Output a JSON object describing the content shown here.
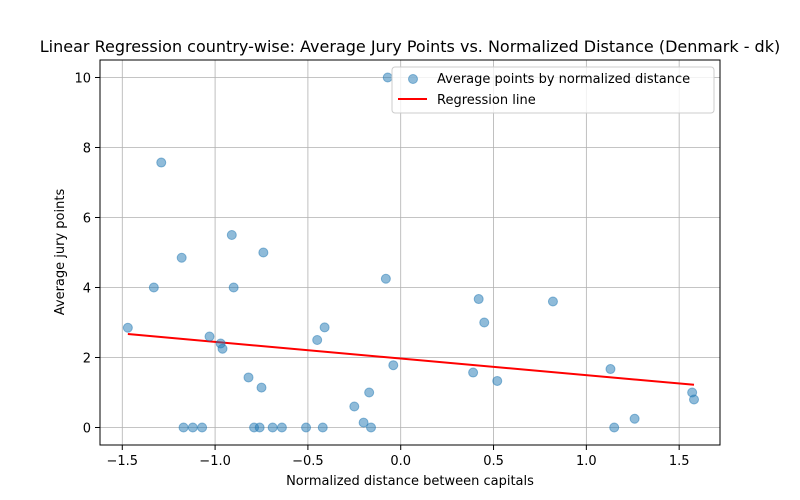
{
  "chart_data": {
    "type": "scatter",
    "title": "Linear Regression country-wise: Average Jury Points vs. Normalized Distance (Denmark - dk)",
    "xlabel": "Normalized distance between capitals",
    "ylabel": "Average jury points",
    "xlim": [
      -1.62,
      1.72
    ],
    "ylim": [
      -0.5,
      10.5
    ],
    "xticks": [
      -1.5,
      -1.0,
      -0.5,
      0.0,
      0.5,
      1.0,
      1.5
    ],
    "xtick_labels": [
      "−1.5",
      "−1.0",
      "−0.5",
      "0.0",
      "0.5",
      "1.0",
      "1.5"
    ],
    "yticks": [
      0,
      2,
      4,
      6,
      8,
      10
    ],
    "ytick_labels": [
      "0",
      "2",
      "4",
      "6",
      "8",
      "10"
    ],
    "grid": true,
    "legend_position": "top-right",
    "series": [
      {
        "name": "Average points by normalized distance",
        "kind": "scatter",
        "color": "#1f77b4",
        "points": [
          [
            -1.47,
            2.85
          ],
          [
            -1.29,
            7.57
          ],
          [
            -1.33,
            4.0
          ],
          [
            -1.18,
            4.85
          ],
          [
            -1.17,
            0.0
          ],
          [
            -1.12,
            0.0
          ],
          [
            -1.07,
            0.0
          ],
          [
            -1.03,
            2.6
          ],
          [
            -0.97,
            2.4
          ],
          [
            -0.96,
            2.25
          ],
          [
            -0.91,
            5.5
          ],
          [
            -0.9,
            4.0
          ],
          [
            -0.82,
            1.43
          ],
          [
            -0.79,
            0.0
          ],
          [
            -0.76,
            0.0
          ],
          [
            -0.75,
            1.14
          ],
          [
            -0.74,
            5.0
          ],
          [
            -0.69,
            0.0
          ],
          [
            -0.64,
            0.0
          ],
          [
            -0.51,
            0.0
          ],
          [
            -0.45,
            2.5
          ],
          [
            -0.42,
            0.0
          ],
          [
            -0.41,
            2.86
          ],
          [
            -0.25,
            0.6
          ],
          [
            -0.2,
            0.14
          ],
          [
            -0.17,
            1.0
          ],
          [
            -0.16,
            0.0
          ],
          [
            -0.08,
            4.25
          ],
          [
            -0.07,
            10.0
          ],
          [
            -0.04,
            1.78
          ],
          [
            0.39,
            1.57
          ],
          [
            0.42,
            3.67
          ],
          [
            0.45,
            3.0
          ],
          [
            0.52,
            1.33
          ],
          [
            0.82,
            3.6
          ],
          [
            1.13,
            1.67
          ],
          [
            1.15,
            0.0
          ],
          [
            1.26,
            0.25
          ],
          [
            1.57,
            1.0
          ],
          [
            1.58,
            0.8
          ]
        ]
      },
      {
        "name": "Regression line",
        "kind": "line",
        "color": "#ff0000",
        "points": [
          [
            -1.47,
            2.67
          ],
          [
            1.58,
            1.22
          ]
        ]
      }
    ]
  }
}
